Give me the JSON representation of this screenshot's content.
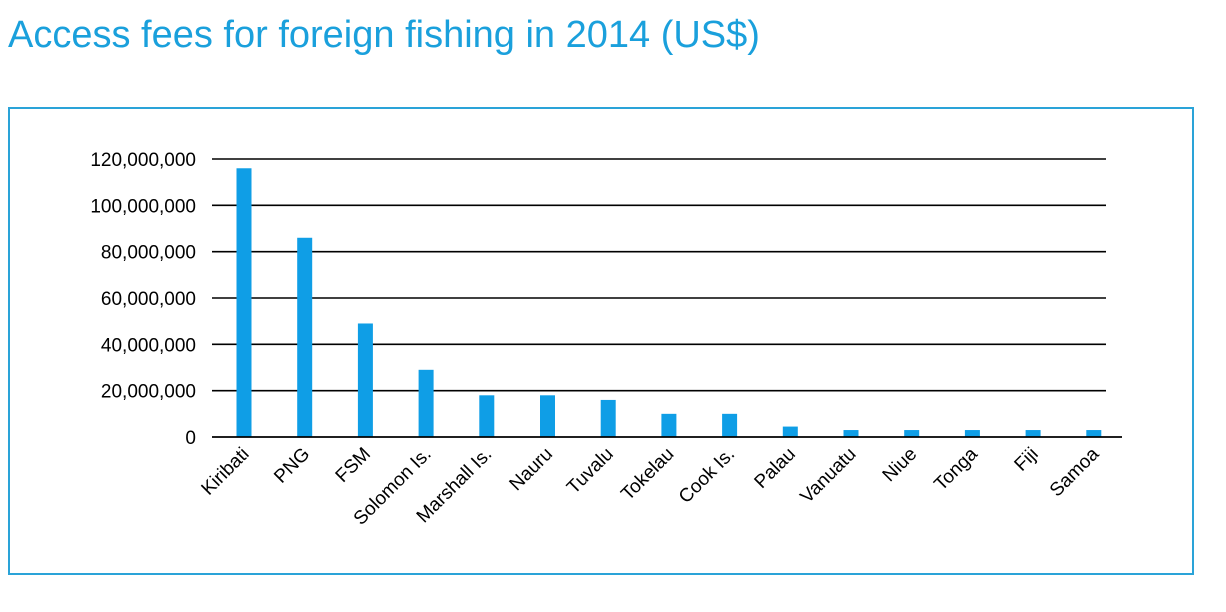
{
  "title": "Access fees for foreign fishing in 2014 (US$)",
  "colors": {
    "title": "#1aa0dc",
    "bar": "#0f9ee6",
    "frame": "#2aa3d8",
    "grid": "#000000"
  },
  "chart_data": {
    "type": "bar",
    "title": "Access fees for foreign fishing in 2014 (US$)",
    "xlabel": "",
    "ylabel": "",
    "ylim": [
      0,
      120000000
    ],
    "yticks": [
      0,
      20000000,
      40000000,
      60000000,
      80000000,
      100000000,
      120000000
    ],
    "ytick_labels": [
      "0",
      "20,000,000",
      "40,000,000",
      "60,000,000",
      "80,000,000",
      "100,000,000",
      "120,000,000"
    ],
    "grid": true,
    "legend": "none",
    "categories": [
      "Kiribati",
      "PNG",
      "FSM",
      "Solomon Is.",
      "Marshall Is.",
      "Nauru",
      "Tuvalu",
      "Tokelau",
      "Cook Is.",
      "Palau",
      "Vanuatu",
      "Niue",
      "Tonga",
      "Fiji",
      "Samoa"
    ],
    "values": [
      116000000,
      86000000,
      49000000,
      29000000,
      18000000,
      18000000,
      16000000,
      10000000,
      10000000,
      4500000,
      3000000,
      3000000,
      3000000,
      3000000,
      3000000
    ]
  }
}
